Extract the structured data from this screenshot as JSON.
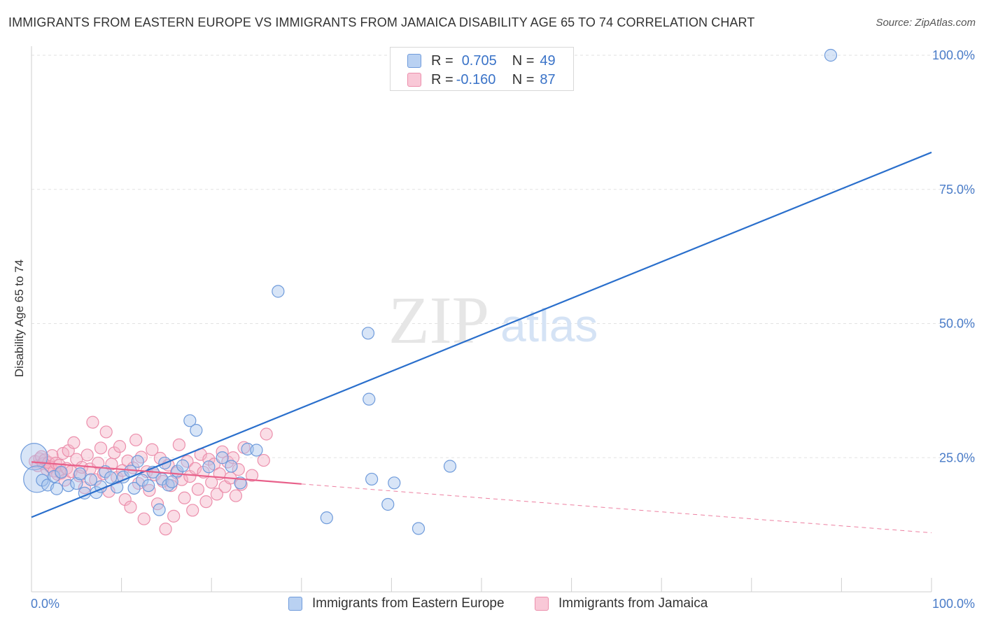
{
  "title": "IMMIGRANTS FROM EASTERN EUROPE VS IMMIGRANTS FROM JAMAICA DISABILITY AGE 65 TO 74 CORRELATION CHART",
  "source": "Source: ZipAtlas.com",
  "watermark": {
    "zip": "ZIP",
    "atlas": "atlas"
  },
  "legend": {
    "r_label": "R =",
    "n_label": "N =",
    "rows": [
      {
        "r": "0.705",
        "n": "49"
      },
      {
        "r": "-0.160",
        "n": "87"
      }
    ]
  },
  "colors": {
    "blue_fill": "#a9c6ee",
    "blue_stroke": "#6f9bdb",
    "blue_line": "#2a6fcc",
    "pink_fill": "#f5b3c8",
    "pink_stroke": "#ec8fac",
    "pink_line": "#e8608a",
    "axis_label": "#4a7cc8"
  },
  "chart_data": {
    "type": "scatter",
    "title": "IMMIGRANTS FROM EASTERN EUROPE VS IMMIGRANTS FROM JAMAICA DISABILITY AGE 65 TO 74 CORRELATION CHART",
    "xlabel": "",
    "ylabel": "Disability Age 65 to 74",
    "xlim": [
      0,
      100
    ],
    "ylim": [
      0,
      102
    ],
    "x_tick_labels": [
      "0.0%",
      "100.0%"
    ],
    "y_ticks": [
      25,
      50,
      75,
      100
    ],
    "y_tick_labels": [
      "25.0%",
      "50.0%",
      "75.0%",
      "100.0%"
    ],
    "grid": true,
    "legend_position": "top-center",
    "series": [
      {
        "name": "Immigrants from Eastern Europe",
        "r": 0.705,
        "n": 49,
        "trend": {
          "x": [
            0,
            100
          ],
          "y": [
            13.9,
            81.9
          ]
        },
        "points": [
          {
            "x": 0.3,
            "y": 25.2,
            "big": true
          },
          {
            "x": 0.6,
            "y": 21.0,
            "big": true
          },
          {
            "x": 1.2,
            "y": 20.8
          },
          {
            "x": 1.8,
            "y": 19.9
          },
          {
            "x": 2.5,
            "y": 21.5
          },
          {
            "x": 2.8,
            "y": 19.2
          },
          {
            "x": 3.3,
            "y": 22.3
          },
          {
            "x": 4.1,
            "y": 19.8
          },
          {
            "x": 5.0,
            "y": 20.2
          },
          {
            "x": 5.4,
            "y": 22.0
          },
          {
            "x": 5.9,
            "y": 18.4
          },
          {
            "x": 6.6,
            "y": 20.9
          },
          {
            "x": 7.2,
            "y": 18.5
          },
          {
            "x": 7.7,
            "y": 19.6
          },
          {
            "x": 8.2,
            "y": 22.4
          },
          {
            "x": 8.8,
            "y": 21.3
          },
          {
            "x": 9.5,
            "y": 19.5
          },
          {
            "x": 10.2,
            "y": 21.4
          },
          {
            "x": 11.0,
            "y": 22.5
          },
          {
            "x": 11.4,
            "y": 19.3
          },
          {
            "x": 11.8,
            "y": 24.3
          },
          {
            "x": 12.3,
            "y": 20.8
          },
          {
            "x": 13.0,
            "y": 19.8
          },
          {
            "x": 13.5,
            "y": 22.3
          },
          {
            "x": 14.2,
            "y": 15.3
          },
          {
            "x": 14.5,
            "y": 21.0
          },
          {
            "x": 14.8,
            "y": 24.0
          },
          {
            "x": 15.2,
            "y": 19.9
          },
          {
            "x": 15.6,
            "y": 20.5
          },
          {
            "x": 16.2,
            "y": 22.5
          },
          {
            "x": 16.8,
            "y": 23.5
          },
          {
            "x": 17.6,
            "y": 31.9
          },
          {
            "x": 18.3,
            "y": 30.1
          },
          {
            "x": 19.7,
            "y": 23.3
          },
          {
            "x": 21.2,
            "y": 25.0
          },
          {
            "x": 22.2,
            "y": 23.4
          },
          {
            "x": 23.2,
            "y": 20.3
          },
          {
            "x": 24.0,
            "y": 26.6
          },
          {
            "x": 25.0,
            "y": 26.4
          },
          {
            "x": 27.4,
            "y": 56.0
          },
          {
            "x": 32.8,
            "y": 13.8
          },
          {
            "x": 37.4,
            "y": 48.2
          },
          {
            "x": 37.5,
            "y": 35.9
          },
          {
            "x": 37.8,
            "y": 21.0
          },
          {
            "x": 39.6,
            "y": 16.3
          },
          {
            "x": 40.3,
            "y": 20.3
          },
          {
            "x": 43.0,
            "y": 11.8
          },
          {
            "x": 46.5,
            "y": 23.4
          },
          {
            "x": 88.8,
            "y": 100.0
          }
        ]
      },
      {
        "name": "Immigrants from Jamaica",
        "r": -0.16,
        "n": 87,
        "trend": {
          "x": [
            0,
            30
          ],
          "y": [
            24.2,
            20.1
          ]
        },
        "trend_dashed": {
          "x": [
            30,
            100
          ],
          "y": [
            20.1,
            11.0
          ]
        },
        "points": [
          {
            "x": 0.4,
            "y": 24.3
          },
          {
            "x": 0.7,
            "y": 23.5
          },
          {
            "x": 0.9,
            "y": 24.8
          },
          {
            "x": 1.1,
            "y": 25.2
          },
          {
            "x": 1.3,
            "y": 23.9
          },
          {
            "x": 1.5,
            "y": 24.6
          },
          {
            "x": 1.7,
            "y": 22.8
          },
          {
            "x": 1.9,
            "y": 24.1
          },
          {
            "x": 2.1,
            "y": 23.3
          },
          {
            "x": 2.3,
            "y": 25.4
          },
          {
            "x": 2.5,
            "y": 22.5
          },
          {
            "x": 2.7,
            "y": 24.0
          },
          {
            "x": 2.9,
            "y": 21.9
          },
          {
            "x": 3.1,
            "y": 23.6
          },
          {
            "x": 3.3,
            "y": 22.1
          },
          {
            "x": 3.5,
            "y": 25.8
          },
          {
            "x": 3.7,
            "y": 20.8
          },
          {
            "x": 3.9,
            "y": 23.0
          },
          {
            "x": 4.1,
            "y": 26.3
          },
          {
            "x": 4.4,
            "y": 22.4
          },
          {
            "x": 4.7,
            "y": 27.8
          },
          {
            "x": 5.0,
            "y": 24.7
          },
          {
            "x": 5.3,
            "y": 21.6
          },
          {
            "x": 5.6,
            "y": 23.2
          },
          {
            "x": 5.9,
            "y": 19.4
          },
          {
            "x": 6.2,
            "y": 25.5
          },
          {
            "x": 6.5,
            "y": 22.9
          },
          {
            "x": 6.8,
            "y": 31.6
          },
          {
            "x": 7.1,
            "y": 20.9
          },
          {
            "x": 7.4,
            "y": 24.0
          },
          {
            "x": 7.7,
            "y": 26.8
          },
          {
            "x": 8.0,
            "y": 22.0
          },
          {
            "x": 8.3,
            "y": 29.8
          },
          {
            "x": 8.6,
            "y": 18.7
          },
          {
            "x": 8.9,
            "y": 23.8
          },
          {
            "x": 9.2,
            "y": 25.9
          },
          {
            "x": 9.5,
            "y": 21.3
          },
          {
            "x": 9.8,
            "y": 27.1
          },
          {
            "x": 10.1,
            "y": 22.6
          },
          {
            "x": 10.4,
            "y": 17.2
          },
          {
            "x": 10.7,
            "y": 24.4
          },
          {
            "x": 11.0,
            "y": 15.8
          },
          {
            "x": 11.3,
            "y": 23.1
          },
          {
            "x": 11.6,
            "y": 28.3
          },
          {
            "x": 11.9,
            "y": 20.2
          },
          {
            "x": 12.2,
            "y": 25.1
          },
          {
            "x": 12.5,
            "y": 13.6
          },
          {
            "x": 12.8,
            "y": 22.4
          },
          {
            "x": 13.1,
            "y": 18.9
          },
          {
            "x": 13.4,
            "y": 26.5
          },
          {
            "x": 13.7,
            "y": 21.8
          },
          {
            "x": 14.0,
            "y": 16.4
          },
          {
            "x": 14.3,
            "y": 24.9
          },
          {
            "x": 14.6,
            "y": 20.6
          },
          {
            "x": 14.9,
            "y": 11.7
          },
          {
            "x": 15.2,
            "y": 23.6
          },
          {
            "x": 15.5,
            "y": 19.8
          },
          {
            "x": 15.8,
            "y": 14.1
          },
          {
            "x": 16.1,
            "y": 22.2
          },
          {
            "x": 16.4,
            "y": 27.4
          },
          {
            "x": 16.7,
            "y": 20.9
          },
          {
            "x": 17.0,
            "y": 17.5
          },
          {
            "x": 17.3,
            "y": 24.3
          },
          {
            "x": 17.6,
            "y": 21.5
          },
          {
            "x": 17.9,
            "y": 15.2
          },
          {
            "x": 18.2,
            "y": 23.0
          },
          {
            "x": 18.5,
            "y": 19.1
          },
          {
            "x": 18.8,
            "y": 25.6
          },
          {
            "x": 19.1,
            "y": 22.3
          },
          {
            "x": 19.4,
            "y": 16.8
          },
          {
            "x": 19.7,
            "y": 24.7
          },
          {
            "x": 20.0,
            "y": 20.4
          },
          {
            "x": 20.3,
            "y": 23.8
          },
          {
            "x": 20.6,
            "y": 18.2
          },
          {
            "x": 20.9,
            "y": 22.0
          },
          {
            "x": 21.2,
            "y": 26.1
          },
          {
            "x": 21.5,
            "y": 19.6
          },
          {
            "x": 21.8,
            "y": 24.2
          },
          {
            "x": 22.1,
            "y": 21.2
          },
          {
            "x": 22.4,
            "y": 25.0
          },
          {
            "x": 22.7,
            "y": 17.9
          },
          {
            "x": 23.0,
            "y": 22.8
          },
          {
            "x": 23.3,
            "y": 20.0
          },
          {
            "x": 23.6,
            "y": 26.9
          },
          {
            "x": 24.5,
            "y": 21.7
          },
          {
            "x": 25.8,
            "y": 24.5
          },
          {
            "x": 26.1,
            "y": 29.4
          }
        ]
      }
    ]
  }
}
